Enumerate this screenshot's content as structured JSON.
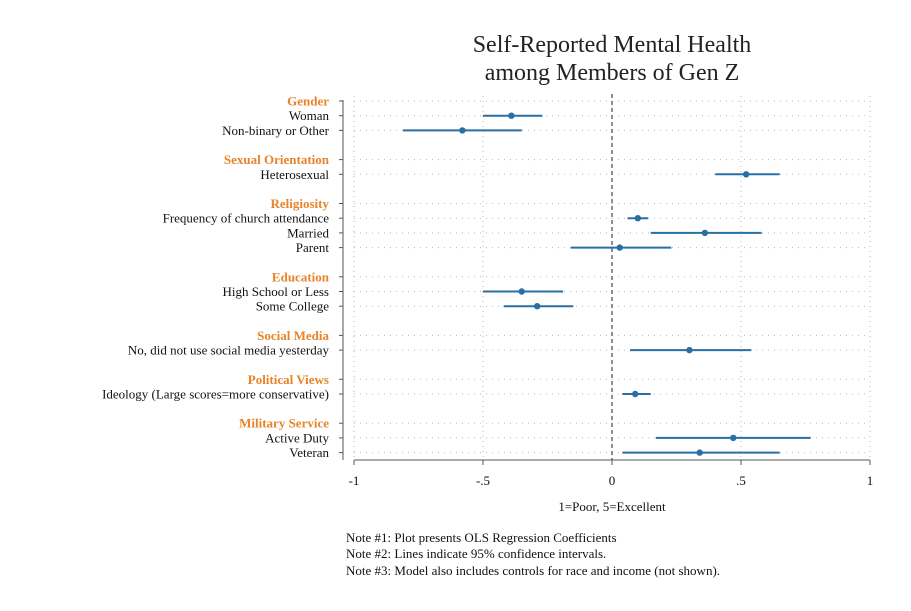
{
  "chart_data": {
    "type": "coefficient-plot",
    "title": [
      "Self-Reported Mental Health",
      "among Members of Gen Z"
    ],
    "xlabel": "1=Poor, 5=Excellent",
    "xlim": [
      -1,
      1
    ],
    "xticks": [
      {
        "value": -1,
        "label": "-1"
      },
      {
        "value": -0.5,
        "label": "-.5"
      },
      {
        "value": 0,
        "label": "0"
      },
      {
        "value": 0.5,
        "label": ".5"
      },
      {
        "value": 1,
        "label": "1"
      }
    ],
    "reference_line": 0,
    "groups": [
      {
        "name": "Gender",
        "items": [
          {
            "label": "Woman",
            "estimate": -0.39,
            "ci": [
              -0.5,
              -0.27
            ]
          },
          {
            "label": "Non-binary or Other",
            "estimate": -0.58,
            "ci": [
              -0.81,
              -0.35
            ]
          }
        ]
      },
      {
        "name": "Sexual Orientation",
        "items": [
          {
            "label": "Heterosexual",
            "estimate": 0.52,
            "ci": [
              0.4,
              0.65
            ]
          }
        ]
      },
      {
        "name": "Religiosity",
        "items": [
          {
            "label": "Frequency of church attendance",
            "estimate": 0.1,
            "ci": [
              0.06,
              0.14
            ]
          },
          {
            "label": "Married",
            "estimate": 0.36,
            "ci": [
              0.15,
              0.58
            ]
          },
          {
            "label": "Parent",
            "estimate": 0.03,
            "ci": [
              -0.16,
              0.23
            ]
          }
        ]
      },
      {
        "name": "Education",
        "items": [
          {
            "label": "High School or Less",
            "estimate": -0.35,
            "ci": [
              -0.5,
              -0.19
            ]
          },
          {
            "label": "Some College",
            "estimate": -0.29,
            "ci": [
              -0.42,
              -0.15
            ]
          }
        ]
      },
      {
        "name": "Social Media",
        "items": [
          {
            "label": "No, did not use social media yesterday",
            "estimate": 0.3,
            "ci": [
              0.07,
              0.54
            ]
          }
        ]
      },
      {
        "name": "Political Views",
        "items": [
          {
            "label": "Ideology (Large scores=more conservative)",
            "estimate": 0.09,
            "ci": [
              0.04,
              0.15
            ]
          }
        ]
      },
      {
        "name": "Military Service",
        "items": [
          {
            "label": "Active Duty",
            "estimate": 0.47,
            "ci": [
              0.17,
              0.77
            ]
          },
          {
            "label": "Veteran",
            "estimate": 0.34,
            "ci": [
              0.04,
              0.65
            ]
          }
        ]
      }
    ],
    "colors": {
      "series": "#2a6fa3",
      "group_label": "#e8832a",
      "reference": "#555555"
    }
  },
  "notes": [
    "Note #1: Plot presents OLS Regression Coefficients",
    "Note #2: Lines indicate 95% confidence intervals.",
    "Note #3: Model also includes controls for race and income (not shown)."
  ]
}
